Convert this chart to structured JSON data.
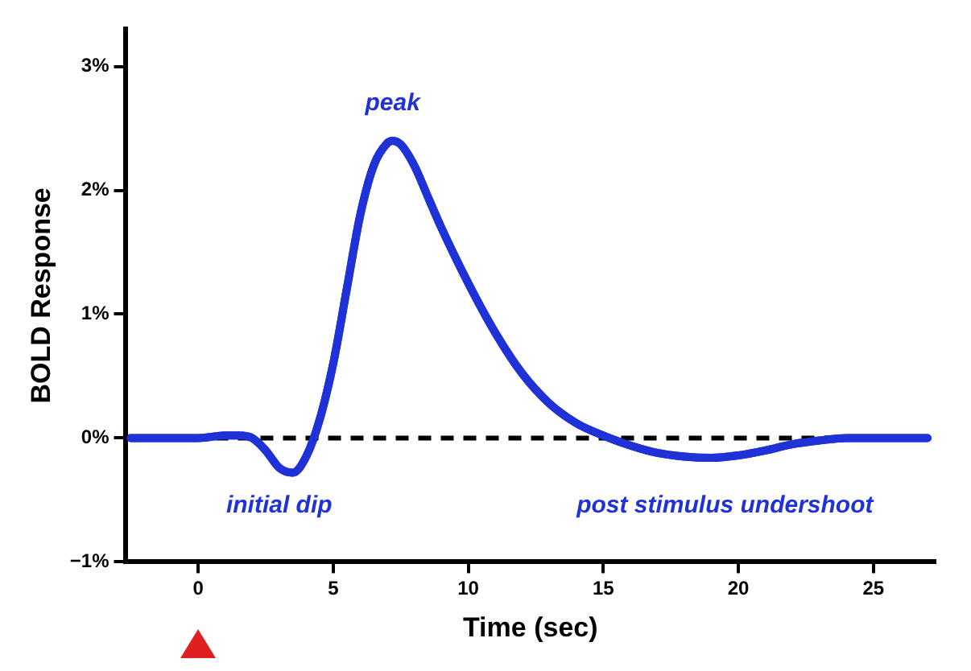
{
  "chart_data": {
    "type": "line",
    "xlabel": "Time (sec)",
    "ylabel": "BOLD Response",
    "x": [
      -2.5,
      0,
      1,
      1.5,
      2,
      2.5,
      3,
      3.5,
      4,
      4.5,
      5,
      5.5,
      6,
      6.5,
      7,
      7.2,
      7.5,
      8,
      8.5,
      9,
      10,
      11,
      12,
      13,
      14,
      15,
      16,
      17,
      18,
      19,
      20,
      21,
      22,
      23,
      24,
      25,
      26,
      27
    ],
    "series": [
      {
        "color": "#1f32d8",
        "values": [
          0,
          0,
          0.02,
          0.02,
          0,
          -0.1,
          -0.24,
          -0.28,
          -0.15,
          0.15,
          0.6,
          1.2,
          1.8,
          2.2,
          2.38,
          2.4,
          2.37,
          2.2,
          1.95,
          1.7,
          1.25,
          0.85,
          0.52,
          0.28,
          0.12,
          0.02,
          -0.06,
          -0.12,
          -0.15,
          -0.16,
          -0.14,
          -0.1,
          -0.05,
          -0.02,
          0,
          0,
          0,
          0
        ]
      }
    ],
    "xlim": [
      -2.7,
      27.3
    ],
    "xticks": [
      0,
      5,
      10,
      15,
      20,
      25
    ],
    "ylim": [
      -1,
      3.3
    ],
    "yticks": [
      {
        "value": -1,
        "label": "−1%"
      },
      {
        "value": 0,
        "label": "0%"
      },
      {
        "value": 1,
        "label": "1%"
      },
      {
        "value": 2,
        "label": "2%"
      },
      {
        "value": 3,
        "label": "3%"
      }
    ],
    "ref_lines": [
      {
        "axis": "y",
        "value": 0,
        "color": "#000000",
        "line_style": "dashed"
      }
    ],
    "annotations": [
      "peak",
      "initial dip",
      "post stimulus undershoot"
    ],
    "grid": false,
    "legend": false,
    "marker": "none",
    "line_style": "solid"
  }
}
